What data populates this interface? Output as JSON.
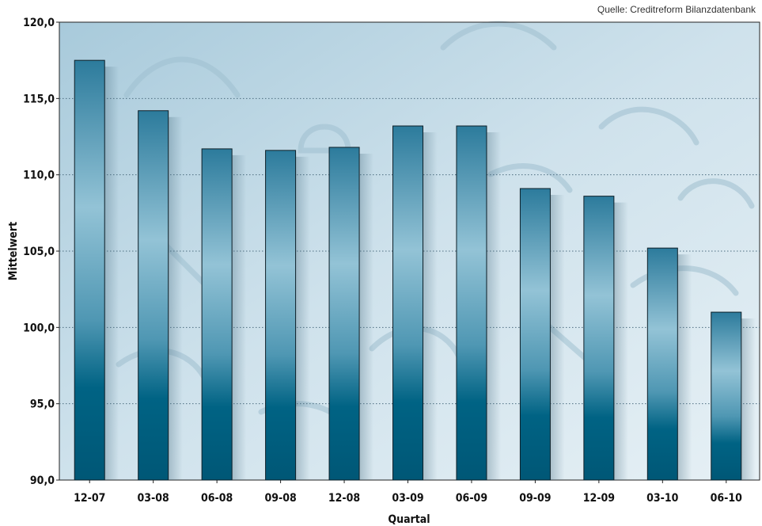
{
  "source_note": "Quelle: Creditreform Bilanzdatenbank",
  "colors": {
    "bar_dark": "#006384",
    "bar_light": "#93c3d6",
    "background_light": "#d8e8f0",
    "background_dark": "#a9cbdc"
  },
  "chart_data": {
    "type": "bar",
    "categories": [
      "12-07",
      "03-08",
      "06-08",
      "09-08",
      "12-08",
      "03-09",
      "06-09",
      "09-09",
      "12-09",
      "03-10",
      "06-10"
    ],
    "values": [
      117.5,
      114.2,
      111.7,
      111.6,
      111.8,
      113.2,
      113.2,
      109.1,
      108.6,
      105.2,
      101.0
    ],
    "xlabel": "Quartal",
    "ylabel": "Mittelwert",
    "ylim": [
      90,
      120
    ],
    "yticks": [
      "90,0",
      "95,0",
      "100,0",
      "105,0",
      "110,0",
      "115,0",
      "120,0"
    ],
    "grid": "horizontal dotted"
  }
}
